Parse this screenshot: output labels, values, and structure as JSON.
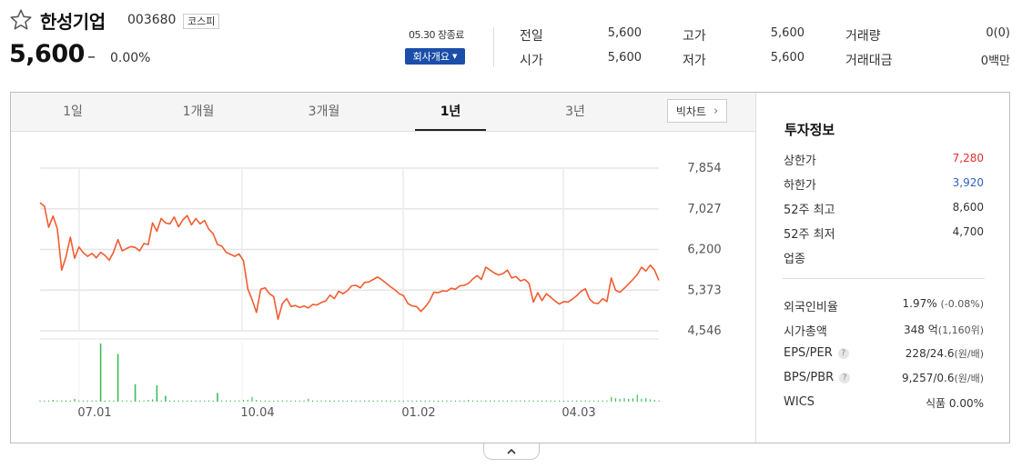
{
  "header": {
    "stock_name": "한성기업",
    "stock_code": "003680",
    "market": "코스피",
    "price": "5,600",
    "change_symbol": "–",
    "change_rate": "0.00%",
    "market_status": "05.30 장종료",
    "company_button": "회사개요",
    "quotes": [
      {
        "label": "전일",
        "value": "5,600"
      },
      {
        "label": "고가",
        "value": "5,600"
      },
      {
        "label": "거래량",
        "value": "0(0)"
      },
      {
        "label": "시가",
        "value": "5,600"
      },
      {
        "label": "저가",
        "value": "5,600"
      },
      {
        "label": "거래대금",
        "value": "0백만"
      }
    ]
  },
  "tabs": [
    {
      "label": "1일",
      "active": false
    },
    {
      "label": "1개월",
      "active": false
    },
    {
      "label": "3개월",
      "active": false
    },
    {
      "label": "1년",
      "active": true
    },
    {
      "label": "3년",
      "active": false
    }
  ],
  "bigchart_label": "빅차트",
  "chart_data": {
    "type": "line",
    "price_color": "#f25c30",
    "volume_color": "#3dbe5a",
    "y_ticks": [
      7854,
      7027,
      6200,
      5373,
      4546
    ],
    "y_tick_labels": [
      "7,854",
      "7,027",
      "6,200",
      "5,373",
      "4,546"
    ],
    "x_tick_labels": [
      "07.01",
      "10.04",
      "01.02",
      "04.03"
    ],
    "price": [
      7150,
      7080,
      6650,
      6880,
      6620,
      5780,
      6050,
      6450,
      6020,
      6250,
      6130,
      6060,
      6120,
      6030,
      6140,
      6080,
      5980,
      6150,
      6400,
      6170,
      6220,
      6260,
      6240,
      6170,
      6320,
      6300,
      6740,
      6570,
      6830,
      6740,
      6720,
      6860,
      6660,
      6800,
      6890,
      6700,
      6830,
      6720,
      6790,
      6610,
      6520,
      6300,
      6270,
      6140,
      6100,
      6060,
      6110,
      5970,
      5400,
      5180,
      4920,
      5390,
      5420,
      5300,
      5240,
      4780,
      5100,
      5200,
      5040,
      5060,
      5020,
      5050,
      5010,
      5080,
      5070,
      5120,
      5150,
      5270,
      5200,
      5350,
      5300,
      5360,
      5460,
      5470,
      5420,
      5530,
      5540,
      5590,
      5640,
      5580,
      5510,
      5440,
      5380,
      5300,
      5260,
      5100,
      5050,
      5040,
      4940,
      5030,
      5150,
      5330,
      5320,
      5360,
      5350,
      5410,
      5390,
      5460,
      5470,
      5510,
      5600,
      5670,
      5590,
      5840,
      5780,
      5720,
      5680,
      5710,
      5780,
      5620,
      5650,
      5560,
      5590,
      5510,
      5130,
      5320,
      5160,
      5300,
      5230,
      5150,
      5090,
      5140,
      5130,
      5190,
      5260,
      5350,
      5400,
      5190,
      5110,
      5100,
      5200,
      5140,
      5620,
      5370,
      5330,
      5410,
      5500,
      5590,
      5690,
      5840,
      5760,
      5880,
      5780,
      5570
    ],
    "volume": [
      0.02,
      0.02,
      0.02,
      0.03,
      0.02,
      0.02,
      0.02,
      0.02,
      0.05,
      0.02,
      0.02,
      0.02,
      0.02,
      0.02,
      0.02,
      0.02,
      0.02,
      0.02,
      0.05,
      0.02,
      0.02,
      0.02,
      0.02,
      0.02,
      0.02,
      0.03,
      0.04,
      0.02,
      0.02,
      0.02,
      0.02,
      0.02,
      0.02,
      0.02,
      0.02,
      0.02,
      0.02,
      0.02,
      0.02,
      0.02,
      0.02,
      0.02,
      0.02,
      0.02,
      0.02,
      0.02,
      0.02,
      0.03,
      0.03,
      0.08,
      0.03,
      0.02,
      0.02,
      0.02,
      0.02,
      0.02,
      0.02,
      0.02,
      0.02,
      0.02,
      0.02,
      0.02,
      0.05,
      0.02,
      0.02,
      0.02,
      0.02,
      0.02,
      0.02,
      0.02,
      0.02,
      0.02,
      0.02,
      0.02,
      0.02,
      0.02,
      0.02,
      0.02,
      0.02,
      0.02,
      0.02,
      0.02,
      0.02,
      0.02,
      0.02,
      0.02,
      0.02,
      0.02,
      0.02,
      0.02,
      0.02,
      0.02,
      0.02,
      0.02,
      0.02,
      0.02,
      0.02,
      0.02,
      0.02,
      0.03,
      0.02,
      0.02,
      0.02,
      0.02,
      0.02,
      0.02,
      0.02,
      0.02,
      0.02,
      0.02,
      0.02,
      0.02,
      0.02,
      0.02,
      0.02,
      0.02,
      0.02,
      0.02,
      0.02,
      0.02,
      0.02,
      0.02,
      0.02,
      0.02,
      0.02,
      0.02,
      0.02,
      0.02,
      0.02,
      0.02,
      0.02,
      0.02,
      0.08,
      0.06,
      0.05,
      0.06,
      0.05,
      0.06,
      0.12,
      0.05,
      0.06,
      0.04,
      0.03,
      0.02
    ],
    "volume_spikes": [
      {
        "index": 14,
        "level": 1.0
      },
      {
        "index": 18,
        "level": 0.82
      },
      {
        "index": 22,
        "level": 0.3
      },
      {
        "index": 27,
        "level": 0.28
      },
      {
        "index": 29,
        "level": 0.1
      },
      {
        "index": 41,
        "level": 0.15
      }
    ]
  },
  "invest_info": {
    "title": "투자정보",
    "rows_top": [
      {
        "label": "상한가",
        "value": "7,280",
        "color": "red"
      },
      {
        "label": "하한가",
        "value": "3,920",
        "color": "blue"
      },
      {
        "label": "52주 최고",
        "value": "8,600",
        "color": ""
      },
      {
        "label": "52주 최저",
        "value": "4,700",
        "color": ""
      },
      {
        "label": "업종",
        "value": "",
        "color": ""
      }
    ],
    "rows_bottom": [
      {
        "label": "외국인비율",
        "value": "1.97%",
        "sub": "(-0.08%)",
        "help": false
      },
      {
        "label": "시가총액",
        "value": "348 억",
        "sub": "(1,160위)",
        "help": false
      },
      {
        "label": "EPS/PER",
        "value": "228/24.6",
        "sub": "(원/배)",
        "help": true
      },
      {
        "label": "BPS/PBR",
        "value": "9,257/0.6",
        "sub": "(원/배)",
        "help": true
      },
      {
        "label": "WICS",
        "value": "식품 0.00%",
        "sub": "",
        "help": false
      }
    ]
  }
}
